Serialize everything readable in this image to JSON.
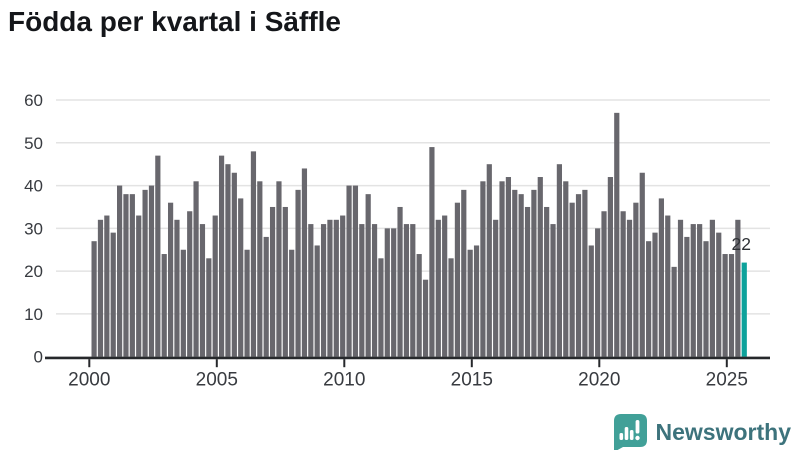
{
  "title": "Födda per kvartal i Säffle",
  "chart_data": {
    "type": "bar",
    "title": "Födda per kvartal i Säffle",
    "xlabel": "",
    "ylabel": "",
    "grid": "horizontal",
    "legend": "none",
    "ylim": [
      0,
      60
    ],
    "yticks": [
      0,
      10,
      20,
      30,
      40,
      50,
      60
    ],
    "xticks": [
      2000,
      2005,
      2010,
      2015,
      2020,
      2025
    ],
    "bar_color": "#68676d",
    "highlight_color": "#0da29b",
    "highlight_index": 102,
    "highlight_label": "22",
    "categories": [
      "2000 Q1",
      "2000 Q2",
      "2000 Q3",
      "2000 Q4",
      "2001 Q1",
      "2001 Q2",
      "2001 Q3",
      "2001 Q4",
      "2002 Q1",
      "2002 Q2",
      "2002 Q3",
      "2002 Q4",
      "2003 Q1",
      "2003 Q2",
      "2003 Q3",
      "2003 Q4",
      "2004 Q1",
      "2004 Q2",
      "2004 Q3",
      "2004 Q4",
      "2005 Q1",
      "2005 Q2",
      "2005 Q3",
      "2005 Q4",
      "2006 Q1",
      "2006 Q2",
      "2006 Q3",
      "2006 Q4",
      "2007 Q1",
      "2007 Q2",
      "2007 Q3",
      "2007 Q4",
      "2008 Q1",
      "2008 Q2",
      "2008 Q3",
      "2008 Q4",
      "2009 Q1",
      "2009 Q2",
      "2009 Q3",
      "2009 Q4",
      "2010 Q1",
      "2010 Q2",
      "2010 Q3",
      "2010 Q4",
      "2011 Q1",
      "2011 Q2",
      "2011 Q3",
      "2011 Q4",
      "2012 Q1",
      "2012 Q2",
      "2012 Q3",
      "2012 Q4",
      "2013 Q1",
      "2013 Q2",
      "2013 Q3",
      "2013 Q4",
      "2014 Q1",
      "2014 Q2",
      "2014 Q3",
      "2014 Q4",
      "2015 Q1",
      "2015 Q2",
      "2015 Q3",
      "2015 Q4",
      "2016 Q1",
      "2016 Q2",
      "2016 Q3",
      "2016 Q4",
      "2017 Q1",
      "2017 Q2",
      "2017 Q3",
      "2017 Q4",
      "2018 Q1",
      "2018 Q2",
      "2018 Q3",
      "2018 Q4",
      "2019 Q1",
      "2019 Q2",
      "2019 Q3",
      "2019 Q4",
      "2020 Q1",
      "2020 Q2",
      "2020 Q3",
      "2020 Q4",
      "2021 Q1",
      "2021 Q2",
      "2021 Q3",
      "2021 Q4",
      "2022 Q1",
      "2022 Q2",
      "2022 Q3",
      "2022 Q4",
      "2023 Q1",
      "2023 Q2",
      "2023 Q3",
      "2023 Q4",
      "2024 Q1",
      "2024 Q2",
      "2024 Q3",
      "2024 Q4",
      "2025 Q1",
      "2025 Q2",
      "2025 Q3"
    ],
    "values": [
      27,
      32,
      33,
      29,
      40,
      38,
      38,
      33,
      39,
      40,
      47,
      24,
      36,
      32,
      25,
      34,
      41,
      31,
      23,
      33,
      47,
      45,
      43,
      37,
      25,
      48,
      41,
      28,
      35,
      41,
      35,
      25,
      39,
      44,
      31,
      26,
      31,
      32,
      32,
      33,
      40,
      40,
      31,
      38,
      31,
      23,
      30,
      30,
      35,
      31,
      31,
      24,
      18,
      49,
      32,
      33,
      23,
      36,
      39,
      25,
      26,
      41,
      45,
      32,
      41,
      42,
      39,
      38,
      35,
      39,
      42,
      35,
      31,
      45,
      41,
      36,
      38,
      39,
      26,
      30,
      34,
      42,
      57,
      34,
      32,
      36,
      43,
      27,
      29,
      37,
      33,
      21,
      32,
      28,
      31,
      31,
      27,
      32,
      29,
      24,
      24,
      32,
      22
    ]
  },
  "colors": {
    "grid": "#e3e3e3",
    "axis": "#26282b",
    "tick_text": "#383b40",
    "annotation_text": "#2f3236",
    "logo_bubble": "#41a098",
    "brand_text": "#3d737c"
  },
  "footer": {
    "brand": "Newsworthy",
    "logo_icon": "bar-chart-speech-bubble-icon"
  }
}
